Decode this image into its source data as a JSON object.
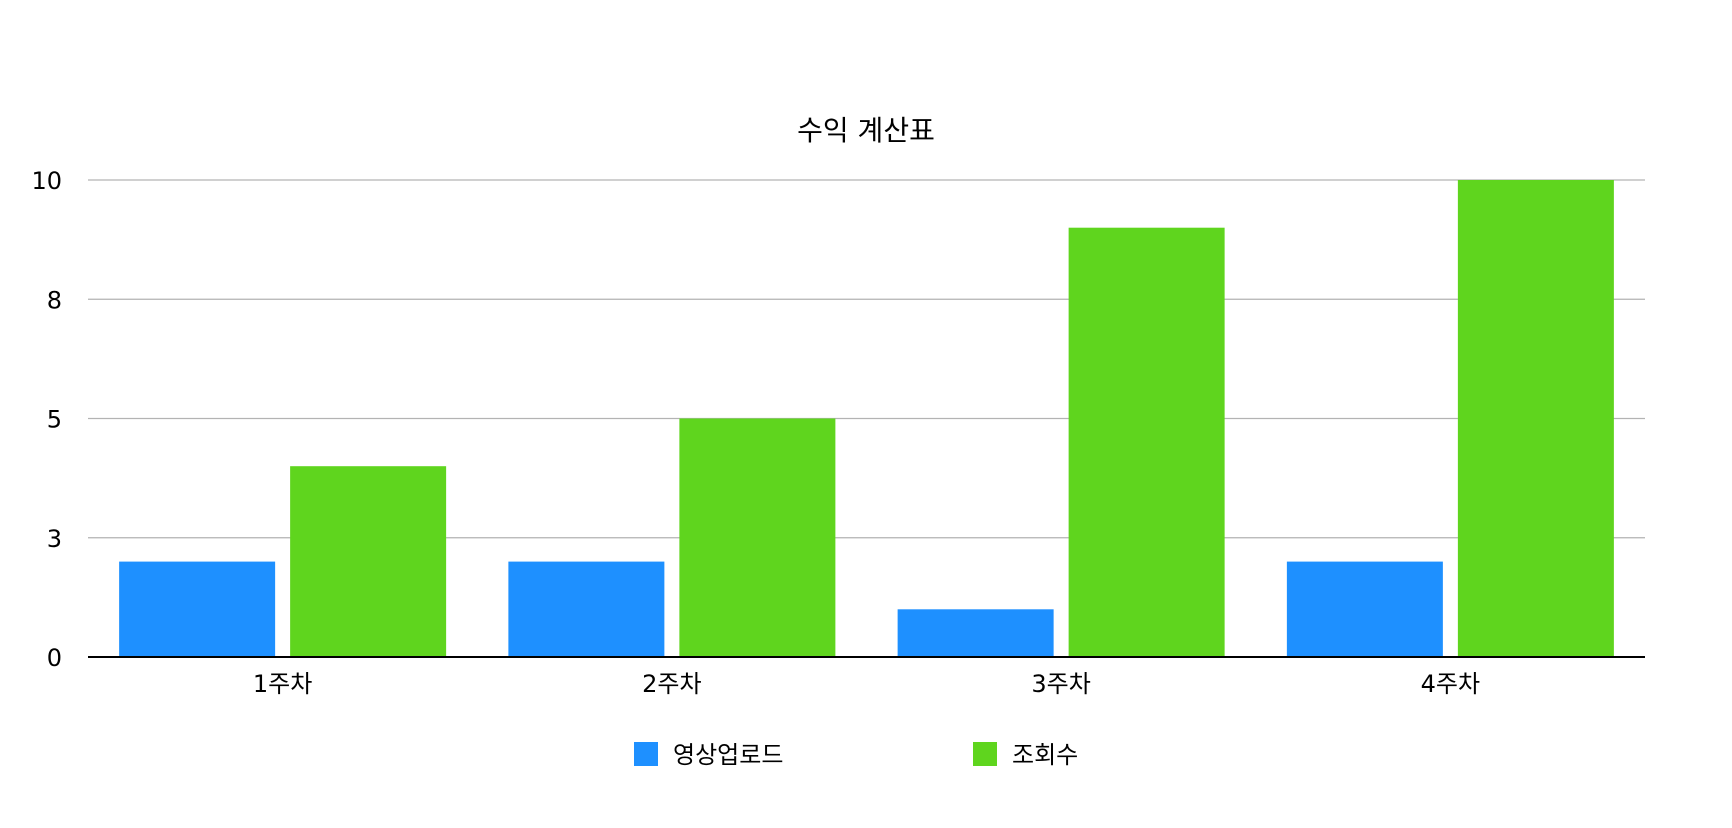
{
  "chart_data": {
    "type": "bar",
    "title": "수익 계산표",
    "xlabel": "",
    "ylabel": "",
    "categories": [
      "1주차",
      "2주차",
      "3주차",
      "4주차"
    ],
    "series": [
      {
        "name": "영상업로드",
        "color": "#1e90ff",
        "values": [
          2,
          2,
          1,
          2
        ]
      },
      {
        "name": "조회수",
        "color": "#5fd51e",
        "values": [
          4,
          5,
          9,
          10
        ]
      }
    ],
    "ylim": [
      0,
      10
    ],
    "yticks": [
      0,
      2.5,
      5,
      7.5,
      10
    ],
    "ytick_labels": [
      "0",
      "3",
      "5",
      "8",
      "10"
    ],
    "grid": true,
    "legend": "bottom-center"
  }
}
